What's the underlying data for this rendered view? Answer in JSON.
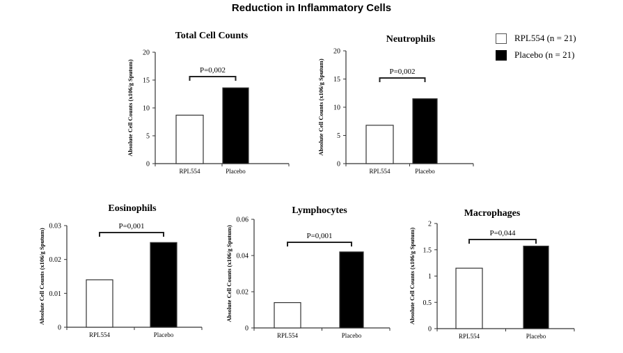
{
  "title": "Reduction in Inflammatory Cells",
  "legend": {
    "placement": "top-right",
    "items": [
      {
        "label": "RPL554 (n = 21)",
        "color": "#ffffff"
      },
      {
        "label": "Placebo (n = 21)",
        "color": "#000000"
      }
    ]
  },
  "chart_data": [
    {
      "type": "bar",
      "title": "Total Cell Counts",
      "ylabel": "Absolute Cell Counts (x106/g Sputum)",
      "categories": [
        "RPL554",
        "Placebo"
      ],
      "values": [
        8.7,
        13.6
      ],
      "ylim": [
        0,
        20
      ],
      "yticks": [
        "0",
        "5",
        "10",
        "15",
        "20"
      ],
      "annotation": "P=0,002"
    },
    {
      "type": "bar",
      "title": "Neutrophils",
      "ylabel": "Absolute Cell Counts (x106/g Sputum)",
      "categories": [
        "RPL554",
        "Placebo"
      ],
      "values": [
        6.8,
        11.5
      ],
      "ylim": [
        0,
        20
      ],
      "yticks": [
        "0",
        "5",
        "10",
        "15",
        "20"
      ],
      "annotation": "P=0,002"
    },
    {
      "type": "bar",
      "title": "Eosinophils",
      "ylabel": "Absolute Cell Counts (x106/g Sputum)",
      "categories": [
        "RPL554",
        "Placebo"
      ],
      "values": [
        0.014,
        0.025
      ],
      "ylim": [
        0,
        0.03
      ],
      "yticks": [
        "0",
        "0.01",
        "0.02",
        "0.03"
      ],
      "annotation": "P=0,001"
    },
    {
      "type": "bar",
      "title": "Lymphocytes",
      "ylabel": "Absolute Cell Counts (x106/g Sputum)",
      "categories": [
        "RPL554",
        "Placebo"
      ],
      "values": [
        0.014,
        0.042
      ],
      "ylim": [
        0,
        0.06
      ],
      "yticks": [
        "0",
        "0.02",
        "0.04",
        "0.06"
      ],
      "annotation": "P=0,001"
    },
    {
      "type": "bar",
      "title": "Macrophages",
      "ylabel": "Absolute Cell Counts (x106/g Sputum)",
      "categories": [
        "RPL554",
        "Placebo"
      ],
      "values": [
        1.15,
        1.57
      ],
      "ylim": [
        0,
        2
      ],
      "yticks": [
        "0",
        "0.5",
        "1",
        "1.5",
        "2"
      ],
      "annotation": "P=0,044"
    }
  ],
  "colors": {
    "series": [
      "#ffffff",
      "#000000"
    ],
    "axis": "#333333"
  }
}
